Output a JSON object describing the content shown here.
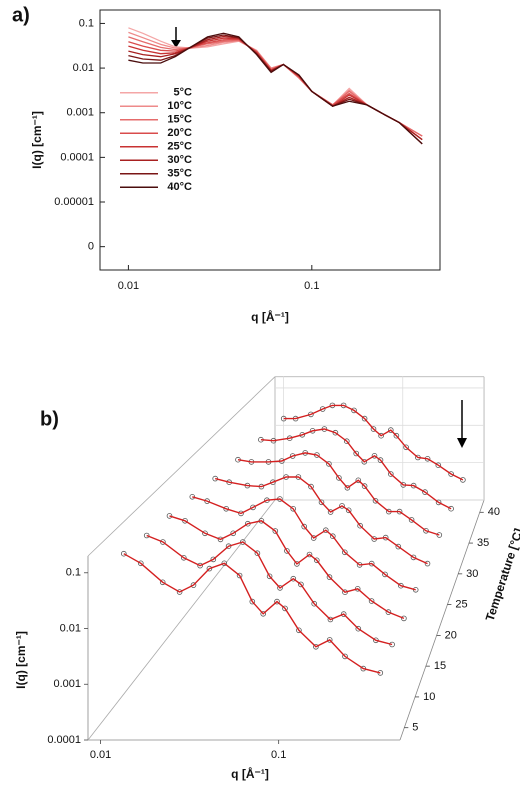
{
  "chart_data": [
    {
      "type": "line",
      "panel_label": "a)",
      "xlabel": "q [Å⁻¹]",
      "ylabel": "I(q) [cm⁻¹]",
      "log_x": true,
      "log_y": true,
      "legend": "center-left",
      "xlim": [
        0.007,
        0.5
      ],
      "xticks": [
        0.01,
        0.1
      ],
      "ylim": [
        3e-07,
        0.2
      ],
      "yticks": [
        0.1,
        0.01,
        0.001,
        0.0001,
        1e-05,
        {
          "value": 1e-06,
          "label": "0"
        }
      ],
      "x": [
        0.01,
        0.012,
        0.015,
        0.018,
        0.022,
        0.027,
        0.033,
        0.04,
        0.05,
        0.06,
        0.07,
        0.085,
        0.1,
        0.13,
        0.16,
        0.2,
        0.25,
        0.3,
        0.4
      ],
      "series": [
        {
          "name": "5°C",
          "color": "#f4a6a6",
          "values": [
            0.08,
            0.06,
            0.04,
            0.03,
            0.028,
            0.03,
            0.035,
            0.04,
            0.025,
            0.01,
            0.012,
            0.006,
            0.003,
            0.0015,
            0.0035,
            0.0015,
            0.0009,
            0.0006,
            0.0003
          ]
        },
        {
          "name": "10°C",
          "color": "#ee8a8a",
          "values": [
            0.063,
            0.048,
            0.034,
            0.028,
            0.028,
            0.032,
            0.038,
            0.041,
            0.024,
            0.01,
            0.012,
            0.006,
            0.003,
            0.0015,
            0.0032,
            0.0015,
            0.0009,
            0.0006,
            0.0003
          ]
        },
        {
          "name": "15°C",
          "color": "#e56b6b",
          "values": [
            0.05,
            0.039,
            0.029,
            0.026,
            0.029,
            0.035,
            0.04,
            0.042,
            0.024,
            0.0095,
            0.012,
            0.0062,
            0.003,
            0.0015,
            0.003,
            0.0015,
            0.0009,
            0.0006,
            0.0003
          ]
        },
        {
          "name": "20°C",
          "color": "#d94c4c",
          "values": [
            0.039,
            0.031,
            0.025,
            0.024,
            0.029,
            0.037,
            0.043,
            0.044,
            0.023,
            0.009,
            0.012,
            0.0064,
            0.003,
            0.0015,
            0.0027,
            0.0015,
            0.0009,
            0.0006,
            0.00025
          ]
        },
        {
          "name": "25°C",
          "color": "#c83232",
          "values": [
            0.031,
            0.025,
            0.021,
            0.022,
            0.029,
            0.04,
            0.047,
            0.045,
            0.022,
            0.009,
            0.012,
            0.0066,
            0.003,
            0.0014,
            0.0025,
            0.0015,
            0.0009,
            0.0006,
            0.00025
          ]
        },
        {
          "name": "30°C",
          "color": "#a82020",
          "values": [
            0.024,
            0.02,
            0.018,
            0.021,
            0.029,
            0.043,
            0.051,
            0.047,
            0.021,
            0.0085,
            0.012,
            0.0068,
            0.003,
            0.0014,
            0.0022,
            0.0015,
            0.0009,
            0.0006,
            0.00025
          ]
        },
        {
          "name": "35°C",
          "color": "#7a1515",
          "values": [
            0.019,
            0.016,
            0.015,
            0.019,
            0.03,
            0.047,
            0.055,
            0.048,
            0.021,
            0.0085,
            0.012,
            0.007,
            0.003,
            0.0014,
            0.002,
            0.0015,
            0.0009,
            0.0006,
            0.0002
          ]
        },
        {
          "name": "40°C",
          "color": "#4a0d0d",
          "values": [
            0.015,
            0.013,
            0.013,
            0.018,
            0.03,
            0.05,
            0.06,
            0.05,
            0.02,
            0.008,
            0.012,
            0.007,
            0.003,
            0.0014,
            0.0018,
            0.0015,
            0.0009,
            0.0006,
            0.0002
          ]
        }
      ]
    },
    {
      "type": "line3d",
      "panel_label": "b)",
      "xlabel": "q [Å⁻¹]",
      "ylabel": "I(q) [cm⁻¹]",
      "zlabel": "Temperature [°C]",
      "log_x": true,
      "log_y": true,
      "line_color": "#d42020",
      "marker_color": "#555555",
      "xlim": [
        0.0085,
        0.48
      ],
      "xticks": [
        0.01,
        0.1
      ],
      "ylim": [
        0.0001,
        0.2
      ],
      "yticks": [
        0.1,
        0.01,
        0.001,
        0.0001
      ],
      "zlim": [
        3,
        42
      ],
      "zticks": [
        5,
        10,
        15,
        20,
        25,
        30,
        35,
        40
      ],
      "x": [
        0.012,
        0.015,
        0.02,
        0.025,
        0.03,
        0.037,
        0.045,
        0.055,
        0.065,
        0.075,
        0.09,
        0.1,
        0.12,
        0.15,
        0.18,
        0.22,
        0.28,
        0.35
      ],
      "series": [
        {
          "z": 5,
          "values": [
            0.15,
            0.1,
            0.045,
            0.03,
            0.04,
            0.08,
            0.1,
            0.06,
            0.02,
            0.012,
            0.02,
            0.015,
            0.006,
            0.003,
            0.004,
            0.002,
            0.0012,
            0.001
          ]
        },
        {
          "z": 10,
          "values": [
            0.12,
            0.09,
            0.045,
            0.032,
            0.042,
            0.075,
            0.09,
            0.055,
            0.02,
            0.012,
            0.018,
            0.014,
            0.006,
            0.003,
            0.0038,
            0.002,
            0.0012,
            0.001
          ]
        },
        {
          "z": 15,
          "values": [
            0.1,
            0.08,
            0.045,
            0.034,
            0.045,
            0.07,
            0.08,
            0.05,
            0.02,
            0.011,
            0.017,
            0.013,
            0.006,
            0.003,
            0.0035,
            0.002,
            0.0012,
            0.0009
          ]
        },
        {
          "z": 20,
          "values": [
            0.08,
            0.065,
            0.045,
            0.036,
            0.048,
            0.068,
            0.072,
            0.045,
            0.019,
            0.011,
            0.016,
            0.012,
            0.0055,
            0.003,
            0.0032,
            0.0019,
            0.0011,
            0.0009
          ]
        },
        {
          "z": 25,
          "values": [
            0.06,
            0.05,
            0.042,
            0.04,
            0.05,
            0.065,
            0.065,
            0.04,
            0.018,
            0.011,
            0.015,
            0.012,
            0.0055,
            0.0028,
            0.003,
            0.0019,
            0.0011,
            0.0008
          ]
        },
        {
          "z": 30,
          "values": [
            0.045,
            0.04,
            0.04,
            0.042,
            0.055,
            0.065,
            0.058,
            0.036,
            0.017,
            0.01,
            0.015,
            0.011,
            0.005,
            0.0028,
            0.0028,
            0.0018,
            0.001,
            0.0008
          ]
        },
        {
          "z": 35,
          "values": [
            0.035,
            0.033,
            0.038,
            0.046,
            0.058,
            0.064,
            0.052,
            0.032,
            0.016,
            0.01,
            0.014,
            0.011,
            0.005,
            0.0027,
            0.0026,
            0.0018,
            0.001,
            0.0007
          ]
        },
        {
          "z": 40,
          "values": [
            0.028,
            0.028,
            0.036,
            0.05,
            0.062,
            0.062,
            0.046,
            0.028,
            0.015,
            0.01,
            0.014,
            0.01,
            0.005,
            0.0027,
            0.0025,
            0.0017,
            0.001,
            0.0007
          ]
        }
      ]
    }
  ]
}
